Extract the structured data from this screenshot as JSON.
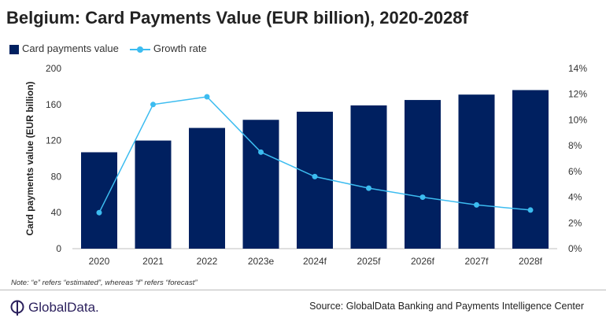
{
  "title": "Belgium: Card Payments Value (EUR billion), 2020-2028f",
  "note": "Note: “e” refers “estimated”, whereas “f” refers “forecast”",
  "source": "Source: GlobalData Banking and Payments Intelligence Center",
  "logo_text": "GlobalData.",
  "colors": {
    "bar": "#002060",
    "line": "#3cbcf0"
  },
  "chart_data": {
    "type": "bar+line",
    "title": "Belgium: Card Payments Value (EUR billion), 2020-2028f",
    "categories": [
      "2020",
      "2021",
      "2022",
      "2023e",
      "2024f",
      "2025f",
      "2026f",
      "2027f",
      "2028f"
    ],
    "series": [
      {
        "name": "Card payments value",
        "type": "bar",
        "axis": "left",
        "values": [
          107,
          120,
          134,
          143,
          152,
          159,
          165,
          171,
          176
        ]
      },
      {
        "name": "Growth rate",
        "type": "line",
        "axis": "right",
        "values": [
          2.8,
          11.2,
          11.8,
          7.5,
          5.6,
          4.7,
          4.0,
          3.4,
          3.0
        ]
      }
    ],
    "ylabel": "Card payments value (EUR billion)",
    "ylim": [
      0,
      200
    ],
    "yticks": [
      "0",
      "40",
      "80",
      "120",
      "160",
      "200"
    ],
    "y2lim": [
      0,
      14
    ],
    "y2ticks": [
      "0%",
      "2%",
      "4%",
      "6%",
      "8%",
      "10%",
      "12%",
      "14%"
    ],
    "legend": "top-left",
    "grid": false
  }
}
